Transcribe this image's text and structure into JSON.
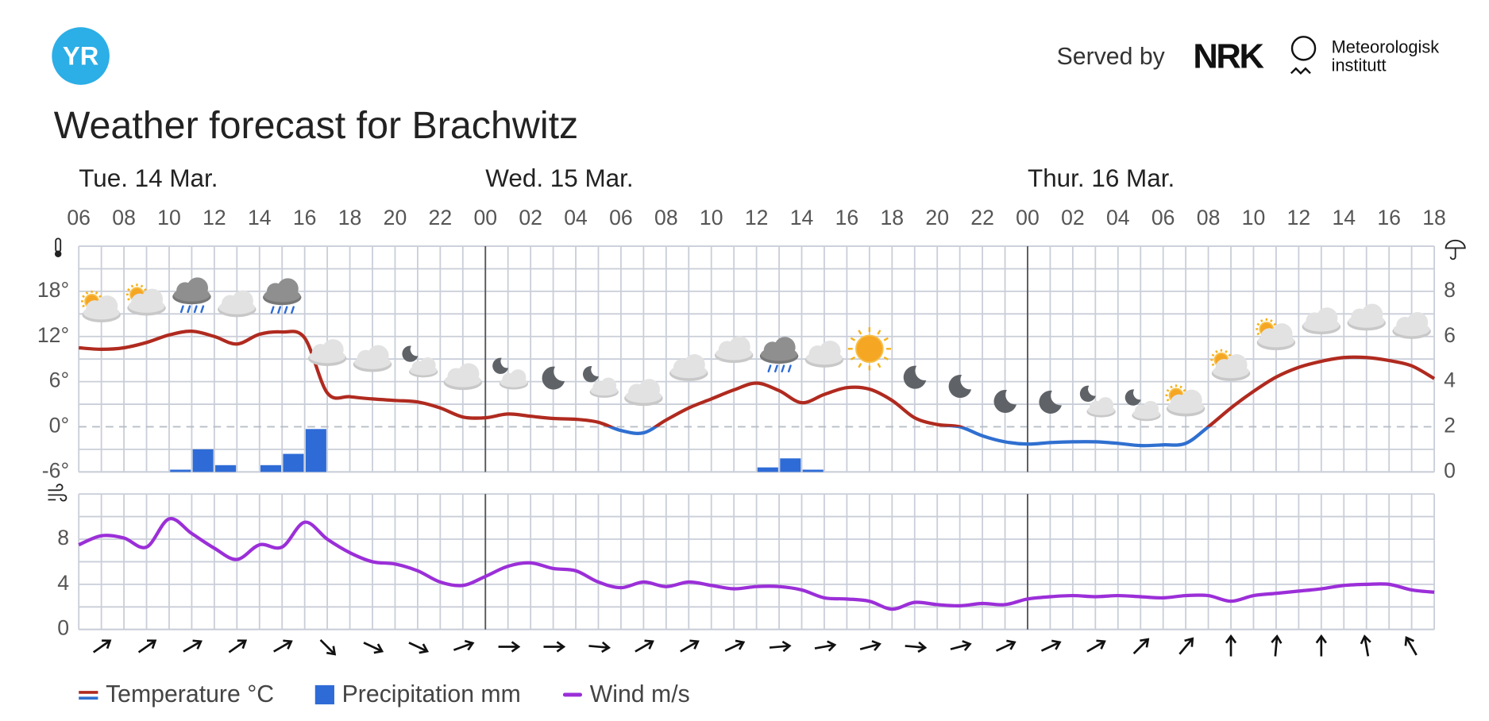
{
  "header": {
    "logo": "YR",
    "served_by": "Served by",
    "nrk_logo": "NRK",
    "met_logo": [
      "Meteorologisk",
      "institutt"
    ]
  },
  "chart_data": [
    {
      "type": "line",
      "title": "Weather forecast for Brachwitz",
      "day_labels": [
        {
          "value": 0,
          "label": "Tue. 14 Mar."
        },
        {
          "value": 18,
          "label": "Wed. 15 Mar."
        },
        {
          "value": 42,
          "label": "Thur. 16 Mar."
        }
      ],
      "xlim": [
        0,
        60
      ],
      "xticks": [
        {
          "value": 0,
          "label": "06"
        },
        {
          "value": 2,
          "label": "08"
        },
        {
          "value": 4,
          "label": "10"
        },
        {
          "value": 6,
          "label": "12"
        },
        {
          "value": 8,
          "label": "14"
        },
        {
          "value": 10,
          "label": "16"
        },
        {
          "value": 12,
          "label": "18"
        },
        {
          "value": 14,
          "label": "20"
        },
        {
          "value": 16,
          "label": "22"
        },
        {
          "value": 18,
          "label": "00"
        },
        {
          "value": 20,
          "label": "02"
        },
        {
          "value": 22,
          "label": "04"
        },
        {
          "value": 24,
          "label": "06"
        },
        {
          "value": 26,
          "label": "08"
        },
        {
          "value": 28,
          "label": "10"
        },
        {
          "value": 30,
          "label": "12"
        },
        {
          "value": 32,
          "label": "14"
        },
        {
          "value": 34,
          "label": "16"
        },
        {
          "value": 36,
          "label": "18"
        },
        {
          "value": 38,
          "label": "20"
        },
        {
          "value": 40,
          "label": "22"
        },
        {
          "value": 42,
          "label": "00"
        },
        {
          "value": 44,
          "label": "02"
        },
        {
          "value": 46,
          "label": "04"
        },
        {
          "value": 48,
          "label": "06"
        },
        {
          "value": 50,
          "label": "08"
        },
        {
          "value": 52,
          "label": "10"
        },
        {
          "value": 54,
          "label": "12"
        },
        {
          "value": 56,
          "label": "14"
        },
        {
          "value": 58,
          "label": "16"
        },
        {
          "value": 60,
          "label": "18"
        }
      ],
      "ylim": [
        -6,
        24
      ],
      "yticks": [
        {
          "value": -6,
          "label": "-6°"
        },
        {
          "value": 0,
          "label": "0°"
        },
        {
          "value": 6,
          "label": "6°"
        },
        {
          "value": 12,
          "label": "12°"
        },
        {
          "value": 18,
          "label": "18°"
        }
      ],
      "y2lim": [
        0,
        10
      ],
      "y2ticks": [
        0,
        2,
        4,
        6,
        8
      ],
      "grid": true,
      "series": [
        {
          "name": "Temperature °C",
          "color": "#b02a1f",
          "cold_color": "#2f6fd0",
          "x": [
            0,
            1,
            2,
            3,
            4,
            5,
            6,
            7,
            8,
            9,
            10,
            11,
            12,
            13,
            14,
            15,
            16,
            17,
            18,
            19,
            20,
            21,
            22,
            23,
            24,
            25,
            26,
            27,
            28,
            29,
            30,
            31,
            32,
            33,
            34,
            35,
            36,
            37,
            38,
            39,
            40,
            41,
            42,
            43,
            44,
            45,
            46,
            47,
            48,
            49,
            50,
            51,
            52,
            53,
            54,
            55,
            56,
            57,
            58,
            59,
            60
          ],
          "values": [
            10.5,
            10.3,
            10.5,
            11.2,
            12.2,
            12.7,
            12.0,
            11.0,
            12.3,
            12.6,
            11.8,
            4.5,
            4.0,
            3.7,
            3.5,
            3.3,
            2.5,
            1.3,
            1.2,
            1.7,
            1.4,
            1.1,
            1.0,
            0.6,
            -0.5,
            -0.8,
            0.9,
            2.5,
            3.7,
            4.9,
            5.8,
            4.8,
            3.2,
            4.3,
            5.2,
            5.0,
            3.5,
            1.2,
            0.3,
            0.0,
            -1.2,
            -2.0,
            -2.3,
            -2.1,
            -2.0,
            -2.0,
            -2.2,
            -2.5,
            -2.4,
            -2.2,
            0.0,
            2.5,
            4.7,
            6.6,
            7.9,
            8.7,
            9.2,
            9.2,
            8.8,
            8.1,
            6.4
          ]
        },
        {
          "name": "Precipitation mm",
          "type": "bar",
          "axis": "y2",
          "color": "#2e6bd6",
          "x": [
            4,
            5,
            6,
            8,
            9,
            10,
            30,
            31,
            32
          ],
          "values": [
            0.1,
            1.0,
            0.3,
            0.3,
            0.8,
            1.9,
            0.2,
            0.6,
            0.1
          ]
        }
      ]
    },
    {
      "type": "line",
      "ylim": [
        0,
        12
      ],
      "yticks": [
        0,
        4,
        8
      ],
      "grid": true,
      "series": [
        {
          "name": "Wind m/s",
          "color": "#9b2fd8",
          "x": [
            0,
            1,
            2,
            3,
            4,
            5,
            6,
            7,
            8,
            9,
            10,
            11,
            12,
            13,
            14,
            15,
            16,
            17,
            18,
            19,
            20,
            21,
            22,
            23,
            24,
            25,
            26,
            27,
            28,
            29,
            30,
            31,
            32,
            33,
            34,
            35,
            36,
            37,
            38,
            39,
            40,
            41,
            42,
            43,
            44,
            45,
            46,
            47,
            48,
            49,
            50,
            51,
            52,
            53,
            54,
            55,
            56,
            57,
            58,
            59,
            60
          ],
          "values": [
            7.5,
            8.3,
            8.1,
            7.3,
            9.8,
            8.5,
            7.2,
            6.2,
            7.5,
            7.3,
            9.5,
            8.0,
            6.8,
            6.0,
            5.8,
            5.2,
            4.2,
            3.9,
            4.7,
            5.6,
            5.9,
            5.4,
            5.2,
            4.2,
            3.7,
            4.2,
            3.8,
            4.2,
            3.9,
            3.6,
            3.8,
            3.8,
            3.5,
            2.8,
            2.7,
            2.5,
            1.8,
            2.4,
            2.2,
            2.1,
            2.3,
            2.2,
            2.7,
            2.9,
            3.0,
            2.9,
            3.0,
            2.9,
            2.8,
            3.0,
            3.0,
            2.5,
            3.0,
            3.2,
            3.4,
            3.6,
            3.9,
            4.0,
            4.0,
            3.5,
            3.3
          ]
        }
      ],
      "wind_direction": {
        "x": [
          1,
          3,
          5,
          7,
          9,
          11,
          13,
          15,
          17,
          19,
          21,
          23,
          25,
          27,
          29,
          31,
          33,
          35,
          37,
          39,
          41,
          43,
          45,
          47,
          49,
          51,
          53,
          55,
          57,
          59
        ],
        "values": [
          55,
          55,
          60,
          55,
          60,
          135,
          115,
          115,
          70,
          90,
          90,
          95,
          60,
          60,
          65,
          85,
          80,
          75,
          95,
          75,
          65,
          65,
          60,
          45,
          40,
          0,
          5,
          0,
          -10,
          -30
        ]
      }
    }
  ]
}
